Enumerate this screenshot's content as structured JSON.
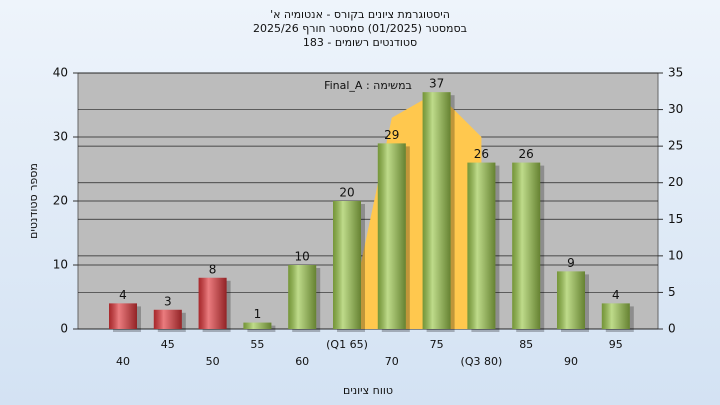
{
  "chart_data": {
    "type": "bar",
    "title": "היסטוגרמת ציונים בקורס - אנטומיה א'",
    "subtitle": [
      "בסמסטר (01/2025) סמסטר חורף 2025/26",
      "סטודנטים רשומים - 183"
    ],
    "annotation": "במשימה : Final_A",
    "x_label": "טווח ציונים",
    "y_label": "מספר סטודנטים",
    "categories": [
      "40",
      "45",
      "50",
      "55",
      "60",
      "(Q1 65)",
      "70",
      "75",
      "(Q3 80)",
      "85",
      "90",
      "95"
    ],
    "values": [
      4,
      3,
      8,
      1,
      10,
      20,
      29,
      37,
      26,
      26,
      9,
      4
    ],
    "colors": [
      "#e0363a",
      "#e0363a",
      "#e0363a",
      "#9cc84c",
      "#9cc84c",
      "#9cc84c",
      "#9cc84c",
      "#9cc84c",
      "#9cc84c",
      "#9cc84c",
      "#9cc84c",
      "#9cc84c"
    ],
    "area": {
      "color": "#ffc84e",
      "values": [
        null,
        null,
        null,
        null,
        null,
        0,
        33,
        37,
        30,
        null,
        null,
        null
      ]
    },
    "ylim": [
      0,
      40
    ],
    "yticks": [
      0,
      10,
      20,
      30,
      40
    ],
    "y2lim": [
      0,
      35
    ],
    "y2ticks": [
      0,
      5,
      10,
      15,
      20,
      25,
      30,
      35
    ],
    "grid": true
  }
}
